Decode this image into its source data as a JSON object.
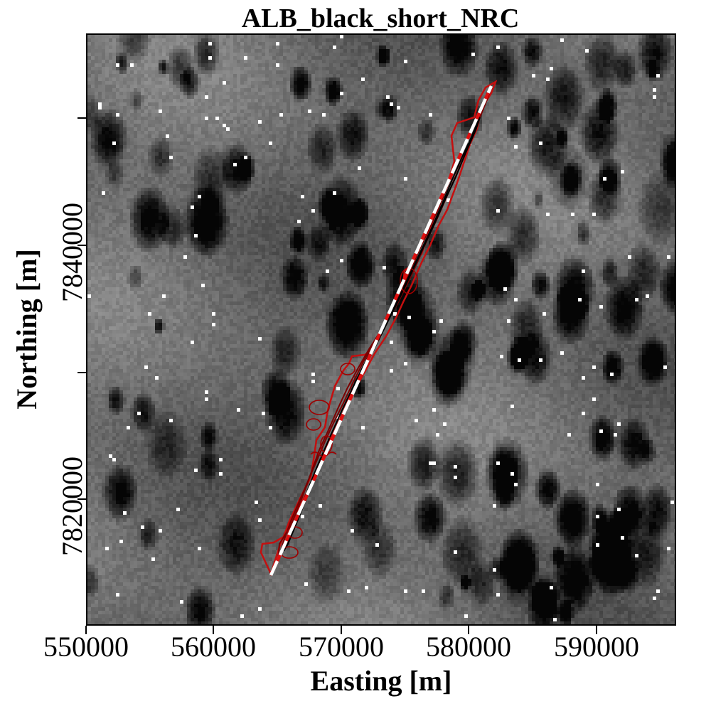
{
  "title": "ALB_black_short_NRC",
  "axes": {
    "xlabel": "Easting [m]",
    "ylabel": "Northing [m]",
    "x_ticks": [
      "550000",
      "560000",
      "570000",
      "580000",
      "590000"
    ],
    "y_ticks": [
      "7820000",
      "7840000"
    ]
  },
  "colors": {
    "background_raster": "grayscale",
    "track_line": "#ffffff",
    "track_dash": "#e01010",
    "contour_outer": "#c41010",
    "contour_inner": "#7a0000",
    "contour_core": "#000000",
    "data_gap": "#ffffff"
  },
  "map": {
    "type": "raster with contours",
    "x_range": [
      550000,
      596000
    ],
    "y_range": [
      7804000,
      7853000
    ],
    "track_start": [
      564300,
      7810800
    ],
    "track_end": [
      581800,
      7849000
    ]
  }
}
